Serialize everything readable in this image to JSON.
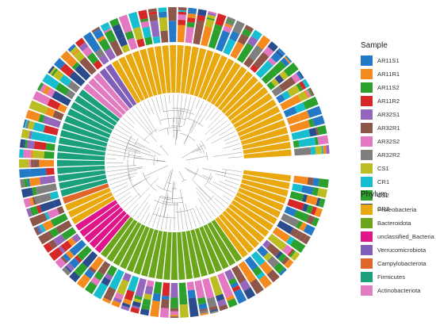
{
  "legend_sample": {
    "title": "Sample",
    "items": [
      {
        "label": "AR11S1",
        "color": "#2479c7"
      },
      {
        "label": "AR11R1",
        "color": "#f58a1f"
      },
      {
        "label": "AR11S2",
        "color": "#2ca02c"
      },
      {
        "label": "AR11R2",
        "color": "#d62728"
      },
      {
        "label": "AR32S1",
        "color": "#9467bd"
      },
      {
        "label": "AR32R1",
        "color": "#8c564b"
      },
      {
        "label": "AR32S2",
        "color": "#e377c2"
      },
      {
        "label": "AR32R2",
        "color": "#7f7f7f"
      },
      {
        "label": "CS1",
        "color": "#bcbd22"
      },
      {
        "label": "CR1",
        "color": "#17becf"
      },
      {
        "label": "CS2",
        "color": "#2ca02c"
      },
      {
        "label": "CR2",
        "color": "#2b4c8c"
      }
    ]
  },
  "legend_phylum": {
    "title": "Phylum",
    "items": [
      {
        "label": "Proteobacteria",
        "color": "#e8a80e"
      },
      {
        "label": "Bacteroidota",
        "color": "#6aa51c"
      },
      {
        "label": "unclassified_Bacteria",
        "color": "#e0158a"
      },
      {
        "label": "Verrucomicrobiota",
        "color": "#7f5fb8"
      },
      {
        "label": "Campylobacterota",
        "color": "#e0652a"
      },
      {
        "label": "Firmicutes",
        "color": "#1aa07a"
      },
      {
        "label": "Actinobacteriota",
        "color": "#e27cc0"
      }
    ]
  },
  "tree": {
    "phylum_order": [
      "Proteobacteria",
      "Bacteroidota",
      "unclassified_Bacteria",
      "Proteobacteria",
      "Campylobacterota",
      "Firmicutes",
      "Actinobacteriota",
      "Verrucomicrobiota",
      "Proteobacteria"
    ],
    "phylum_counts": [
      13,
      20,
      5,
      3,
      1,
      15,
      3,
      2,
      32
    ]
  }
}
